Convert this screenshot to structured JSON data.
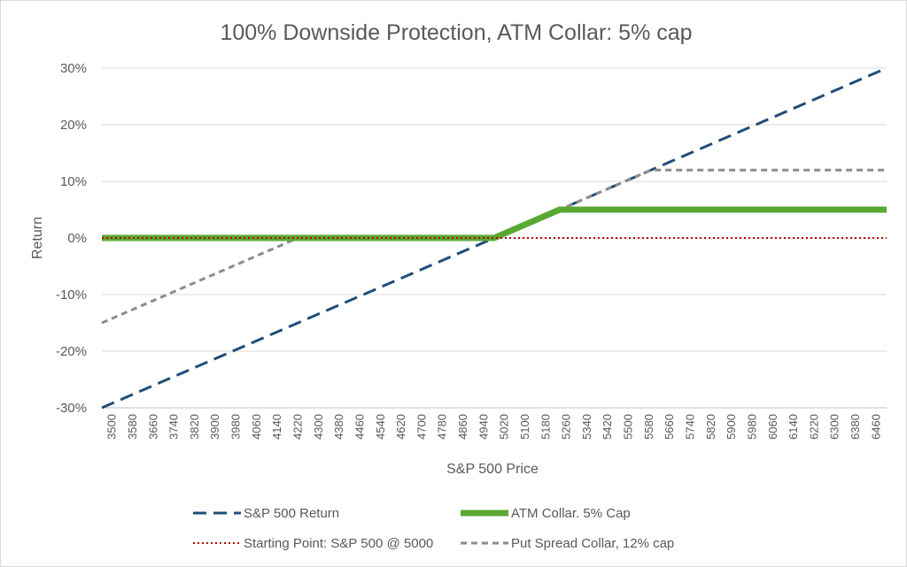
{
  "chart_data": {
    "type": "line",
    "title": "100% Downside Protection, ATM Collar: 5% cap",
    "xlabel": "S&P 500 Price",
    "ylabel": "Return",
    "xlim": [
      3500,
      6500
    ],
    "ylim": [
      -0.3,
      0.3
    ],
    "y_ticks": [
      0.3,
      0.2,
      0.1,
      0.0,
      -0.1,
      -0.2,
      -0.3
    ],
    "y_tick_labels": [
      "30%",
      "20%",
      "10%",
      "0%",
      "-10%",
      "-20%",
      "-30%"
    ],
    "x_tick_labels": [
      "3500",
      "3580",
      "3660",
      "3740",
      "3820",
      "3900",
      "3980",
      "4060",
      "4140",
      "4220",
      "4300",
      "4380",
      "4460",
      "4540",
      "4620",
      "4700",
      "4780",
      "4860",
      "4940",
      "5020",
      "5100",
      "5180",
      "5260",
      "5340",
      "5420",
      "5500",
      "5580",
      "5660",
      "5740",
      "5820",
      "5900",
      "5980",
      "6060",
      "6140",
      "6220",
      "6300",
      "6380",
      "6460"
    ],
    "grid": true,
    "legend_position": "bottom",
    "series": [
      {
        "name": "S&P 500 Return",
        "color": "#1f4e79",
        "style": "dashed",
        "x": [
          3500,
          6500
        ],
        "y": [
          -0.3,
          0.3
        ]
      },
      {
        "name": "ATM Collar. 5% Cap",
        "color": "#5aa832",
        "style": "solid-thick",
        "x": [
          3500,
          5000,
          5250,
          6500
        ],
        "y": [
          0.0,
          0.0,
          0.05,
          0.05
        ]
      },
      {
        "name": "Starting Point: S&P 500 @ 5000",
        "color": "#c00000",
        "style": "dotted",
        "x": [
          3500,
          6500
        ],
        "y": [
          0.0,
          0.0
        ]
      },
      {
        "name": "Put Spread Collar, 12% cap",
        "color": "#8c8c8c",
        "style": "dashed",
        "x": [
          3500,
          4250,
          5000,
          5600,
          6500
        ],
        "y": [
          -0.15,
          0.0,
          0.0,
          0.12,
          0.12
        ]
      }
    ]
  }
}
